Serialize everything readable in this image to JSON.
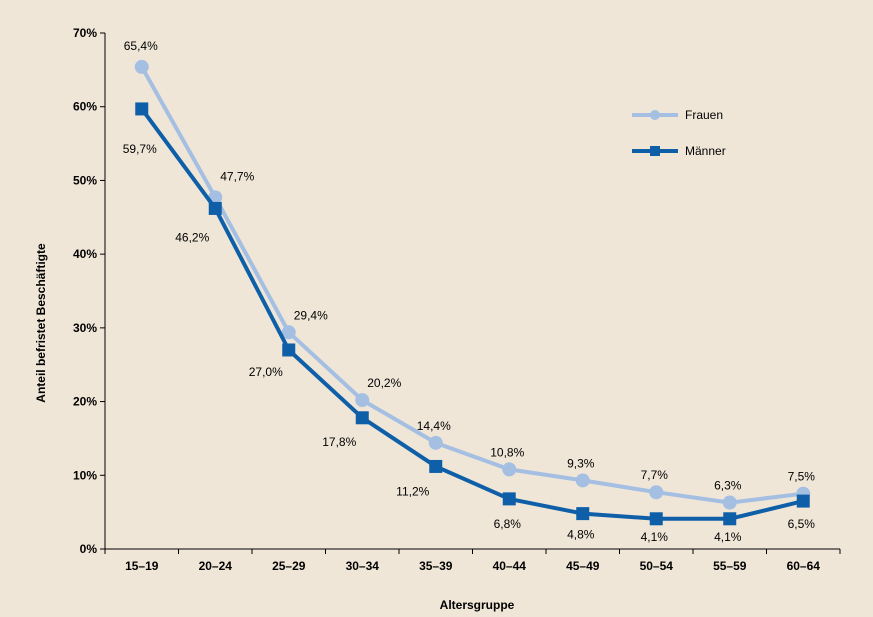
{
  "chart_data": {
    "type": "line",
    "categories": [
      "15–19",
      "20–24",
      "25–29",
      "30–34",
      "35–39",
      "40–44",
      "45–49",
      "50–54",
      "55–59",
      "60–64"
    ],
    "xlabel": "Altersgruppe",
    "ylabel": "Anteil befristet Beschäftigte",
    "ylim": [
      0,
      70
    ],
    "y_ticks": [
      "0%",
      "10%",
      "20%",
      "30%",
      "40%",
      "50%",
      "60%",
      "70%"
    ],
    "grid": false,
    "legend_position": "top-right",
    "series": [
      {
        "name": "Frauen",
        "color": "#a4bfe2",
        "marker": "circle",
        "values": [
          65.4,
          47.7,
          29.4,
          20.2,
          14.4,
          10.8,
          9.3,
          7.7,
          6.3,
          7.5
        ],
        "labels": [
          "65,4%",
          "47,7%",
          "29,4%",
          "20,2%",
          "14,4%",
          "10,8%",
          "9,3%",
          "7,7%",
          "6,3%",
          "7,5%"
        ]
      },
      {
        "name": "Männer",
        "color": "#0f5fa8",
        "marker": "square",
        "values": [
          59.7,
          46.2,
          27.0,
          17.8,
          11.2,
          6.8,
          4.8,
          4.1,
          4.1,
          6.5
        ],
        "labels": [
          "59,7%",
          "46,2%",
          "27,0%",
          "17,8%",
          "11,2%",
          "6,8%",
          "4,8%",
          "4,1%",
          "4,1%",
          "6,5%"
        ]
      }
    ]
  }
}
